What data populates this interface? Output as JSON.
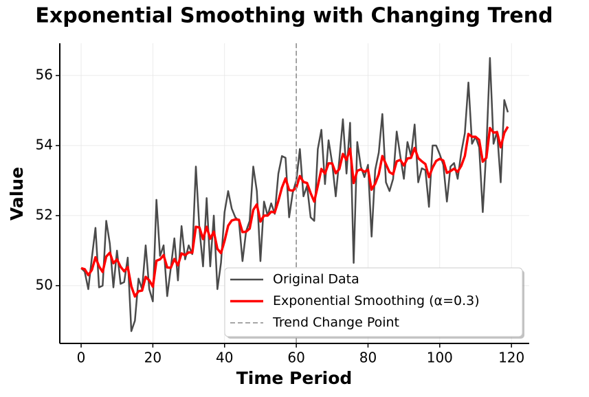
{
  "chart_data": {
    "type": "line",
    "title": "Exponential Smoothing with Changing Trend",
    "x_label": "Time Period",
    "y_label": "Value",
    "x": [
      0,
      1,
      2,
      3,
      4,
      5,
      6,
      7,
      8,
      9,
      10,
      11,
      12,
      13,
      14,
      15,
      16,
      17,
      18,
      19,
      20,
      21,
      22,
      23,
      24,
      25,
      26,
      27,
      28,
      29,
      30,
      31,
      32,
      33,
      34,
      35,
      36,
      37,
      38,
      39,
      40,
      41,
      42,
      43,
      44,
      45,
      46,
      47,
      48,
      49,
      50,
      51,
      52,
      53,
      54,
      55,
      56,
      57,
      58,
      59,
      60,
      61,
      62,
      63,
      64,
      65,
      66,
      67,
      68,
      69,
      70,
      71,
      72,
      73,
      74,
      75,
      76,
      77,
      78,
      79,
      80,
      81,
      82,
      83,
      84,
      85,
      86,
      87,
      88,
      89,
      90,
      91,
      92,
      93,
      94,
      95,
      96,
      97,
      98,
      99,
      100,
      101,
      102,
      103,
      104,
      105,
      106,
      107,
      108,
      109,
      110,
      111,
      112,
      113,
      114,
      115,
      116,
      117,
      118,
      119
    ],
    "series": [
      {
        "name": "Original Data",
        "color": "#4a4a4a",
        "width": 2.5,
        "values": [
          50.5,
          50.4,
          49.9,
          50.8,
          51.65,
          49.95,
          50.0,
          51.85,
          51.2,
          49.95,
          51.0,
          50.05,
          50.1,
          50.8,
          48.7,
          49.0,
          50.2,
          49.9,
          51.15,
          49.9,
          49.55,
          52.45,
          50.85,
          51.15,
          49.7,
          50.5,
          51.35,
          50.15,
          51.7,
          50.75,
          51.15,
          50.9,
          53.4,
          51.6,
          50.55,
          52.5,
          50.55,
          52.0,
          49.9,
          50.65,
          52.1,
          52.7,
          52.2,
          51.95,
          51.85,
          50.7,
          51.55,
          51.85,
          53.4,
          52.7,
          50.7,
          52.4,
          52.0,
          52.35,
          52.05,
          53.2,
          53.7,
          53.65,
          51.95,
          52.65,
          53.0,
          53.9,
          52.55,
          52.85,
          51.95,
          51.85,
          53.9,
          54.45,
          52.9,
          54.15,
          53.5,
          52.55,
          53.6,
          54.75,
          53.2,
          54.65,
          50.65,
          54.1,
          53.4,
          53.1,
          53.45,
          51.4,
          53.3,
          53.8,
          54.9,
          52.95,
          52.7,
          53.05,
          54.4,
          53.7,
          53.05,
          54.1,
          53.7,
          54.6,
          52.95,
          53.35,
          53.3,
          52.25,
          54.0,
          54.0,
          53.75,
          53.45,
          52.4,
          53.4,
          53.5,
          53.05,
          53.8,
          54.35,
          55.8,
          54.05,
          54.25,
          53.95,
          52.1,
          53.9,
          56.5,
          54.05,
          54.4,
          52.95,
          55.3,
          54.95
        ]
      },
      {
        "name": "Exponential Smoothing (α=0.3)",
        "color": "#ff0000",
        "width": 3.5,
        "values": [
          50.5,
          50.47,
          50.3,
          50.45,
          50.81,
          50.55,
          50.39,
          50.83,
          50.94,
          50.64,
          50.75,
          50.54,
          50.41,
          50.53,
          49.98,
          49.69,
          49.84,
          49.86,
          50.25,
          50.15,
          49.97,
          50.71,
          50.75,
          50.87,
          50.52,
          50.51,
          50.76,
          50.58,
          50.92,
          50.87,
          50.95,
          50.94,
          51.68,
          51.66,
          51.33,
          51.68,
          51.34,
          51.54,
          51.05,
          50.93,
          51.28,
          51.71,
          51.86,
          51.89,
          51.88,
          51.53,
          51.54,
          51.63,
          52.16,
          52.32,
          51.83,
          52.0,
          52.0,
          52.11,
          52.09,
          52.42,
          52.8,
          53.06,
          52.73,
          52.71,
          52.8,
          53.13,
          52.96,
          52.93,
          52.64,
          52.4,
          52.85,
          53.33,
          53.2,
          53.49,
          53.49,
          53.21,
          53.33,
          53.76,
          53.59,
          53.91,
          52.93,
          53.28,
          53.32,
          53.25,
          53.31,
          52.74,
          52.91,
          53.18,
          53.7,
          53.47,
          53.24,
          53.18,
          53.55,
          53.59,
          53.43,
          53.63,
          53.65,
          53.93,
          53.64,
          53.55,
          53.47,
          53.1,
          53.37,
          53.56,
          53.62,
          53.57,
          53.22,
          53.27,
          53.34,
          53.25,
          53.42,
          53.7,
          54.33,
          54.25,
          54.25,
          54.16,
          53.54,
          53.65,
          54.5,
          54.37,
          54.38,
          53.95,
          54.36,
          54.54
        ]
      }
    ],
    "vline": {
      "x": 60,
      "name": "Trend Change Point",
      "color": "#999999"
    },
    "xlim": [
      -5.95,
      124.95
    ],
    "xticks": [
      0,
      20,
      40,
      60,
      80,
      100,
      120
    ],
    "ylim": [
      48.35,
      56.92
    ],
    "yticks": [
      50,
      52,
      54,
      56
    ],
    "grid": true,
    "legend": "lower right"
  }
}
